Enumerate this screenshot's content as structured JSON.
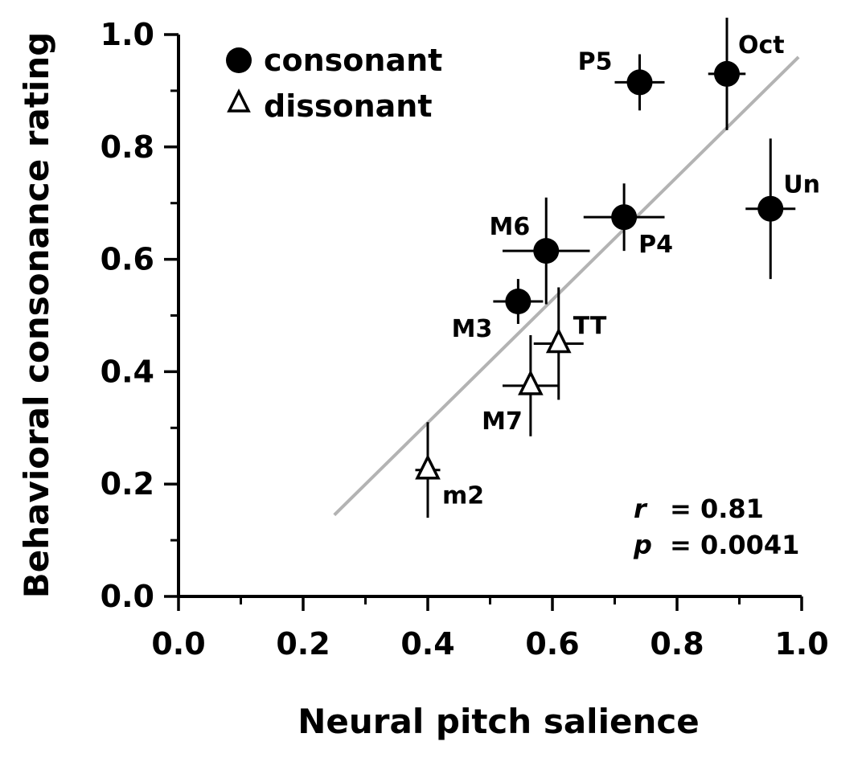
{
  "chart_data": {
    "type": "scatter",
    "xlabel": "Neural pitch salience",
    "ylabel": "Behavioral consonance rating",
    "xlim": [
      0.0,
      1.0
    ],
    "ylim": [
      0.0,
      1.0
    ],
    "x_ticks": [
      "0.0",
      "0.2",
      "0.4",
      "0.6",
      "0.8",
      "1.0"
    ],
    "y_ticks": [
      "0.0",
      "0.2",
      "0.4",
      "0.6",
      "0.8",
      "1.0"
    ],
    "grid": false,
    "legend_position": "top-left",
    "series": [
      {
        "name": "consonant",
        "marker": "filled-circle",
        "points": [
          {
            "label": "P5",
            "x": 0.74,
            "y": 0.915,
            "xerr": 0.04,
            "yerr": 0.05
          },
          {
            "label": "Oct",
            "x": 0.88,
            "y": 0.93,
            "xerr": 0.03,
            "yerr": 0.1
          },
          {
            "label": "Un",
            "x": 0.95,
            "y": 0.69,
            "xerr": 0.04,
            "yerr": 0.125
          },
          {
            "label": "P4",
            "x": 0.715,
            "y": 0.675,
            "xerr": 0.065,
            "yerr": 0.06
          },
          {
            "label": "M6",
            "x": 0.59,
            "y": 0.615,
            "xerr": 0.07,
            "yerr": 0.095
          },
          {
            "label": "M3",
            "x": 0.545,
            "y": 0.525,
            "xerr": 0.04,
            "yerr": 0.04
          }
        ]
      },
      {
        "name": "dissonant",
        "marker": "open-triangle",
        "points": [
          {
            "label": "TT",
            "x": 0.61,
            "y": 0.45,
            "xerr": 0.04,
            "yerr": 0.1
          },
          {
            "label": "M7",
            "x": 0.565,
            "y": 0.375,
            "xerr": 0.045,
            "yerr": 0.09
          },
          {
            "label": "m2",
            "x": 0.4,
            "y": 0.225,
            "xerr": 0.02,
            "yerr": 0.085
          }
        ]
      }
    ],
    "fit_line": {
      "x": [
        0.25,
        0.995
      ],
      "y": [
        0.145,
        0.96
      ],
      "color": "#b3b3b3"
    },
    "stats": [
      {
        "symbol": "r",
        "value": "= 0.81"
      },
      {
        "symbol": "p",
        "value": "= 0.0041"
      }
    ]
  }
}
